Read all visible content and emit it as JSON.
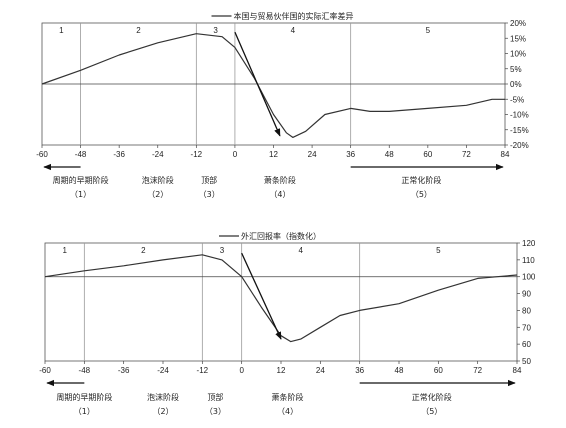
{
  "chart_data": [
    {
      "type": "line",
      "legend": "本国与贸易伙伴国的实际汇率差异",
      "legend_position": "top",
      "x": [
        -60,
        -48,
        -36,
        -24,
        -12,
        -4,
        0,
        6,
        12,
        16,
        18,
        22,
        28,
        36,
        42,
        48,
        60,
        72,
        80,
        84
      ],
      "series": [
        {
          "values": [
            0,
            4.5,
            9.5,
            13.5,
            16.5,
            15.5,
            12,
            2,
            -10,
            -16,
            -17.5,
            -15.5,
            -10,
            -8,
            -9,
            -9,
            -8,
            -7,
            -5,
            -5
          ]
        }
      ],
      "xticks": [
        "-60",
        "-48",
        "-36",
        "-24",
        "-12",
        "0",
        "12",
        "24",
        "36",
        "48",
        "60",
        "72",
        "84"
      ],
      "yticks": [
        "20%",
        "15%",
        "10%",
        "5%",
        "0%",
        "-5%",
        "-10%",
        "-15%",
        "-20%"
      ],
      "xlim": [
        -60,
        84
      ],
      "ylim": [
        -20,
        20
      ],
      "y_axis_side": "right",
      "phase_boundaries": [
        -48,
        -12,
        0,
        36
      ],
      "phase_numbers": [
        "1",
        "2",
        "3",
        "4",
        "5"
      ],
      "arrow": {
        "from": [
          0,
          17
        ],
        "to": [
          14,
          -17
        ]
      }
    },
    {
      "type": "line",
      "legend": "外汇回报率（指数化）",
      "legend_position": "top",
      "x": [
        -60,
        -48,
        -36,
        -24,
        -12,
        -6,
        0,
        6,
        12,
        15,
        18,
        24,
        30,
        36,
        48,
        60,
        72,
        84
      ],
      "series": [
        {
          "values": [
            100,
            103.5,
            106.5,
            110,
            113,
            110,
            100,
            82,
            65,
            61.5,
            63,
            70,
            77,
            80,
            84,
            92,
            99,
            101
          ]
        }
      ],
      "xticks": [
        "-60",
        "-48",
        "-36",
        "-24",
        "-12",
        "0",
        "12",
        "24",
        "36",
        "48",
        "60",
        "72",
        "84"
      ],
      "yticks": [
        "120",
        "110",
        "100",
        "90",
        "80",
        "70",
        "60",
        "50"
      ],
      "xlim": [
        -60,
        84
      ],
      "ylim": [
        50,
        120
      ],
      "y_axis_side": "right",
      "baseline": 100,
      "phase_boundaries": [
        -48,
        -12,
        0,
        36
      ],
      "phase_numbers": [
        "1",
        "2",
        "3",
        "4",
        "5"
      ],
      "arrow": {
        "from": [
          0,
          114
        ],
        "to": [
          12,
          63
        ]
      }
    }
  ],
  "phase_labels": [
    {
      "label": "周期的早期阶段",
      "num": "（1）"
    },
    {
      "label": "泡沫阶段",
      "num": "（2）"
    },
    {
      "label": "顶部",
      "num": "（3）"
    },
    {
      "label": "萧条阶段",
      "num": "（4）"
    },
    {
      "label": "正常化阶段",
      "num": "（5）"
    }
  ],
  "colors": {
    "line": "#333333",
    "grid": "#9a9a9a",
    "frame": "#555555"
  }
}
